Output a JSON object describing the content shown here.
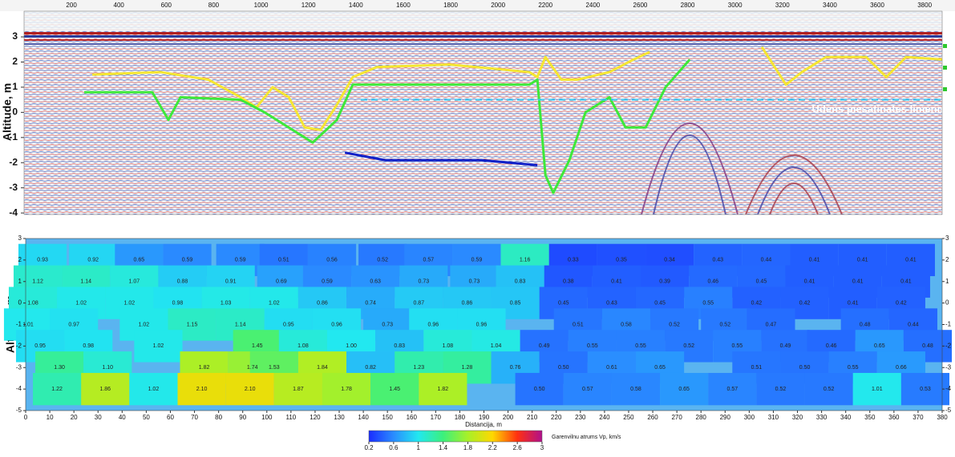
{
  "chart_data": [
    {
      "type": "line",
      "ylabel": "Altitude, m",
      "annotation": "Udens piesatinates limenis",
      "xlim": [
        0,
        3874
      ],
      "ylim": [
        -4.06,
        4.02
      ],
      "xticks": [
        200,
        400,
        600,
        800,
        1000,
        1200,
        1400,
        1600,
        1800,
        2000,
        2200,
        2400,
        2600,
        2800,
        3000,
        3200,
        3400,
        3600,
        3800
      ],
      "yticks": [
        3,
        2,
        1,
        0,
        -1,
        -2,
        -3,
        -4
      ],
      "series": [
        {
          "color": "#f5e632",
          "x": [
            288,
            575,
            778,
            914,
            981,
            1049,
            1117,
            1184,
            1252,
            1320,
            1387,
            1489,
            1794,
            2132,
            2166,
            2200,
            2267,
            2335,
            2470,
            2572,
            2640,
            null,
            3113,
            3215,
            3282,
            3384,
            3553,
            3638,
            3722,
            3875
          ],
          "values": [
            1.5,
            1.6,
            1.3,
            0.6,
            0.2,
            1.0,
            0.6,
            -0.6,
            -0.7,
            0.3,
            1.4,
            1.8,
            1.9,
            1.6,
            1.4,
            2.2,
            1.3,
            1.3,
            1.6,
            2.1,
            2.4,
            null,
            2.6,
            1.1,
            1.6,
            2.2,
            2.2,
            1.4,
            2.2,
            2.1
          ]
        },
        {
          "color": "#3ee83a",
          "x": [
            254,
            541,
            609,
            660,
            914,
            1015,
            1218,
            1320,
            1387,
            1726,
            2132,
            2166,
            2200,
            2233,
            2301,
            2369,
            2470,
            2538,
            2623,
            2707,
            2809
          ],
          "values": [
            0.8,
            0.8,
            -0.3,
            0.6,
            0.5,
            0.0,
            -1.2,
            -0.3,
            1.1,
            1.1,
            1.1,
            1.3,
            -2.5,
            -3.2,
            -1.9,
            0.0,
            0.6,
            -0.6,
            -0.6,
            1.0,
            2.1
          ]
        },
        {
          "color": "#1020c8",
          "x": [
            1354,
            1523,
            1929,
            2166
          ],
          "values": [
            -1.6,
            -1.9,
            -1.9,
            -2.1
          ]
        },
        {
          "color": "#35c8f0",
          "dashed": true,
          "x": [
            1421,
            3875
          ],
          "values": [
            0.5,
            0.5
          ]
        }
      ]
    },
    {
      "type": "heatmap",
      "xlabel": "Distancija, m",
      "ylabel": "Altituda, m",
      "xlim": [
        0,
        380
      ],
      "ylim": [
        -5,
        3
      ],
      "xticks": [
        0,
        10,
        20,
        30,
        40,
        50,
        60,
        70,
        80,
        90,
        100,
        110,
        120,
        130,
        140,
        150,
        160,
        170,
        180,
        190,
        200,
        210,
        220,
        230,
        240,
        250,
        260,
        270,
        280,
        290,
        300,
        310,
        320,
        330,
        340,
        350,
        360,
        370,
        380
      ],
      "yticks": [
        3,
        2,
        1,
        0,
        -1,
        -2,
        -3,
        -4,
        -5
      ],
      "y2ticks": [
        3,
        2,
        1,
        0,
        -1,
        -2,
        -3,
        -4,
        -5
      ],
      "x": [
        7,
        28,
        47,
        67,
        89,
        107,
        127,
        148,
        167,
        187,
        207,
        227,
        247,
        267,
        287,
        307,
        327,
        347,
        367,
        5,
        25,
        45,
        65,
        85,
        106,
        125,
        145,
        165,
        186,
        205,
        225,
        245,
        265,
        285,
        305,
        325,
        345,
        365,
        3,
        23,
        43,
        63,
        83,
        103,
        123,
        143,
        163,
        183,
        203,
        223,
        243,
        263,
        283,
        303,
        323,
        343,
        363,
        1,
        20,
        49,
        69,
        89,
        109,
        129,
        150,
        169,
        189,
        229,
        249,
        269,
        290,
        309,
        348,
        368,
        6,
        26,
        55,
        96,
        115,
        135,
        155,
        175,
        195,
        215,
        235,
        255,
        275,
        295,
        315,
        334,
        354,
        374,
        14,
        34,
        74,
        94,
        103,
        123,
        143,
        163,
        183,
        203,
        223,
        243,
        263,
        303,
        323,
        343,
        363,
        13,
        33,
        53,
        73,
        93,
        113,
        133,
        153,
        173,
        213,
        233,
        253,
        273,
        293,
        313,
        333,
        353,
        373
      ],
      "y": [
        2,
        2,
        2,
        2,
        2,
        2,
        2,
        2,
        2,
        2,
        2,
        2,
        2,
        2,
        2,
        2,
        2,
        2,
        2,
        1,
        1,
        1,
        1,
        1,
        1,
        1,
        1,
        1,
        1,
        1,
        1,
        1,
        1,
        1,
        1,
        1,
        1,
        1,
        0,
        0,
        0,
        0,
        0,
        0,
        0,
        0,
        0,
        0,
        0,
        0,
        0,
        0,
        0,
        0,
        0,
        0,
        0,
        -1,
        -1,
        -1,
        -1,
        -1,
        -1,
        -1,
        -1,
        -1,
        -1,
        -1,
        -1,
        -1,
        -1,
        -1,
        -1,
        -1,
        -2,
        -2,
        -2,
        -2,
        -2,
        -2,
        -2,
        -2,
        -2,
        -2,
        -2,
        -2,
        -2,
        -2,
        -2,
        -2,
        -2,
        -2,
        -3,
        -3,
        -3,
        -3,
        -3,
        -3,
        -3,
        -3,
        -3,
        -3,
        -3,
        -3,
        -3,
        -3,
        -3,
        -3,
        -3,
        -4,
        -4,
        -4,
        -4,
        -4,
        -4,
        -4,
        -4,
        -4,
        -4,
        -4,
        -4,
        -4,
        -4,
        -4,
        -4,
        -4,
        -4
      ],
      "values": [
        0.93,
        0.92,
        0.65,
        0.59,
        0.59,
        0.51,
        0.56,
        0.52,
        0.57,
        0.59,
        1.16,
        0.33,
        0.35,
        0.34,
        0.43,
        0.44,
        0.41,
        0.41,
        0.41,
        1.12,
        1.14,
        1.07,
        0.88,
        0.91,
        0.69,
        0.59,
        0.63,
        0.73,
        0.73,
        0.83,
        0.38,
        0.41,
        0.39,
        0.46,
        0.45,
        0.41,
        0.41,
        0.41,
        1.08,
        1.02,
        1.02,
        0.98,
        1.03,
        1.02,
        0.86,
        0.74,
        0.87,
        0.86,
        0.85,
        0.45,
        0.43,
        0.45,
        0.55,
        0.42,
        0.42,
        0.41,
        0.42,
        1.01,
        0.97,
        1.02,
        1.15,
        1.14,
        0.95,
        0.96,
        0.73,
        0.96,
        0.96,
        0.51,
        0.58,
        0.52,
        0.52,
        0.47,
        0.48,
        0.44,
        0.95,
        0.98,
        1.02,
        1.45,
        1.08,
        1.0,
        0.83,
        1.08,
        1.04,
        0.49,
        0.55,
        0.55,
        0.52,
        0.55,
        0.49,
        0.46,
        0.65,
        0.48,
        1.3,
        1.1,
        1.82,
        1.74,
        1.53,
        1.84,
        0.82,
        1.23,
        1.28,
        0.76,
        0.5,
        0.61,
        0.65,
        0.51,
        0.5,
        0.55,
        0.66,
        1.22,
        1.86,
        1.02,
        2.1,
        2.1,
        1.87,
        1.78,
        1.45,
        1.82,
        0.5,
        0.57,
        0.58,
        0.65,
        0.57,
        0.52,
        0.52,
        1.01,
        0.53
      ],
      "value_labels": [
        "0.93",
        "0.92",
        "0.65",
        "0.59",
        "0.59",
        "0.51",
        "0.56",
        "0.52",
        "0.57",
        "0.59",
        "1.16",
        "0.33",
        "0.35",
        "0.34",
        "0.43",
        "0.44",
        "0.41",
        "0.41",
        "0.41",
        "1.12",
        "1.14",
        "1.07",
        "0.88",
        "0.91",
        "0.69",
        "0.59",
        "0.63",
        "0.73",
        "0.73",
        "0.83",
        "0.38",
        "0.41",
        "0.39",
        "0.46",
        "0.45",
        "0.41",
        "0.41",
        "0.41",
        "1.08",
        "1.02",
        "1.02",
        "0.98",
        "1.03",
        "1.02",
        "0.86",
        "0.74",
        "0.87",
        "0.86",
        "0.85",
        "0.45",
        "0.43",
        "0.45",
        "0.55",
        "0.42",
        "0.42",
        "0.41",
        "0.42",
        "1.01",
        "0.97",
        "1.02",
        "1.15",
        "1.14",
        "0.95",
        "0.96",
        "0.73",
        "0.96",
        "0.96",
        "0.51",
        "0.58",
        "0.52",
        "0.52",
        "0.47",
        "0.48",
        "0.44",
        "0.95",
        "0.98",
        "1.02",
        "1.45",
        "1.08",
        "1.00",
        "0.83",
        "1.08",
        "1.04",
        "0.49",
        "0.55",
        "0.55",
        "0.52",
        "0.55",
        "0.49",
        "0.46",
        "0.65",
        "0.48",
        "1.30",
        "1.10",
        "1.82",
        "1.74",
        "1.53",
        "1.84",
        "0.82",
        "1.23",
        "1.28",
        "0.76",
        "0.50",
        "0.61",
        "0.65",
        "0.51",
        "0.50",
        "0.55",
        "0.66",
        "1.22",
        "1.86",
        "1.02",
        "2.10",
        "2.10",
        "1.87",
        "1.78",
        "1.45",
        "1.82",
        "0.50",
        "0.57",
        "0.58",
        "0.65",
        "0.57",
        "0.52",
        "0.52",
        "1.01",
        "0.53"
      ],
      "colorbar": {
        "label": "Garenvilnu atrums Vp, km/s",
        "ticks": [
          0.2,
          0.6,
          1,
          1.4,
          1.8,
          2.2,
          2.6,
          3
        ],
        "colors": [
          "#1a2cff",
          "#2a8cff",
          "#22e8f0",
          "#3cf07c",
          "#a8f028",
          "#ffd800",
          "#ff3010",
          "#b0108c"
        ]
      }
    }
  ]
}
